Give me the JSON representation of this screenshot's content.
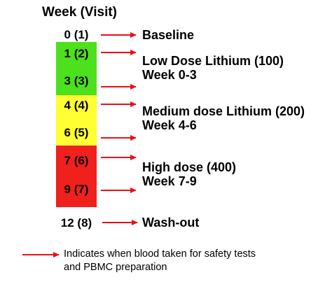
{
  "header": "Week (Visit)",
  "weeks": [
    "0 (1)",
    "1 (2)",
    "3 (3)",
    "4 (4)",
    "6 (5)",
    "7 (6)",
    "9 (7)",
    "12 (8)"
  ],
  "phases": [
    {
      "line1": "Baseline",
      "line2": ""
    },
    {
      "line1": "Low Dose Lithium (100)",
      "line2": "Week 0-3"
    },
    {
      "line1": "Medium dose Lithium (200)",
      "line2": "Week 4-6"
    },
    {
      "line1": "High dose (400)",
      "line2": "Week 7-9"
    },
    {
      "line1": "Wash-out",
      "line2": ""
    }
  ],
  "legend": {
    "line1": "Indicates when blood taken for safety tests",
    "line2": "and PBMC preparation"
  },
  "colors": {
    "low": "#4de01c",
    "medium": "#ffff33",
    "high": "#f0201c",
    "arrow": "#e8101a"
  }
}
